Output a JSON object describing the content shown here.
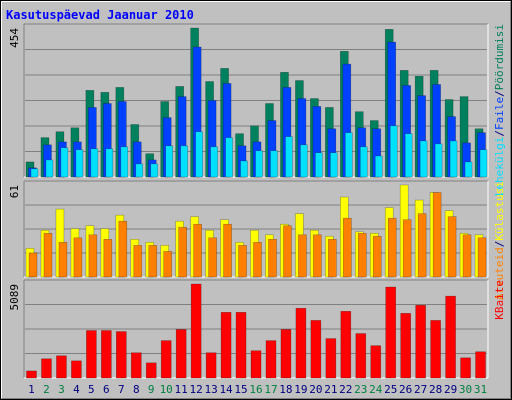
{
  "chart_data": [
    {
      "type": "bar",
      "title": "Kasutuspäevad Jaanuar 2010",
      "categories": [
        "1",
        "2",
        "3",
        "4",
        "5",
        "6",
        "7",
        "8",
        "9",
        "10",
        "11",
        "12",
        "13",
        "14",
        "15",
        "16",
        "17",
        "18",
        "19",
        "20",
        "21",
        "22",
        "23",
        "24",
        "25",
        "26",
        "27",
        "28",
        "29",
        "30",
        "31"
      ],
      "label_colors": [
        "#000080",
        "#008040",
        "#008040",
        "#000080",
        "#000080",
        "#000080",
        "#000080",
        "#000080",
        "#008040",
        "#008040",
        "#000080",
        "#000080",
        "#000080",
        "#000080",
        "#000080",
        "#008040",
        "#008040",
        "#000080",
        "#000080",
        "#000080",
        "#000080",
        "#000080",
        "#008040",
        "#008040",
        "#000080",
        "#000080",
        "#000080",
        "#000080",
        "#000080",
        "#008040",
        "#008040"
      ],
      "legend_separator": "/",
      "ylim": [
        0,
        454
      ],
      "yticks": [
        454
      ],
      "series": [
        {
          "name": "Pöördumisi",
          "color": "#00805c",
          "values": [
            46,
            120,
            138,
            150,
            264,
            258,
            273,
            160,
            71,
            230,
            276,
            454,
            291,
            331,
            132,
            156,
            224,
            319,
            294,
            239,
            212,
            383,
            199,
            172,
            450,
            325,
            307,
            325,
            236,
            245,
            147
          ]
        },
        {
          "name": "Faile",
          "color": "#0040ff",
          "values": [
            28,
            98,
            107,
            107,
            212,
            224,
            230,
            107,
            52,
            181,
            245,
            396,
            233,
            285,
            95,
            107,
            172,
            273,
            239,
            215,
            147,
            344,
            150,
            147,
            411,
            279,
            248,
            282,
            184,
            104,
            135
          ]
        },
        {
          "name": "Lehekülgi",
          "color": "#00e0ff",
          "values": [
            25,
            52,
            89,
            83,
            86,
            86,
            92,
            40,
            40,
            95,
            95,
            138,
            92,
            120,
            49,
            80,
            80,
            123,
            98,
            74,
            74,
            135,
            92,
            64,
            156,
            132,
            110,
            101,
            110,
            46,
            83
          ]
        }
      ]
    },
    {
      "type": "bar",
      "ylim": [
        0,
        61
      ],
      "yticks": [
        61
      ],
      "series": [
        {
          "name": "Külastusi",
          "color": "#ffff00",
          "values": [
            19,
            31,
            45,
            32,
            34,
            32,
            41,
            25,
            23,
            21,
            37,
            40,
            31,
            38,
            23,
            31,
            28,
            35,
            42,
            31,
            27,
            53,
            30,
            29,
            46,
            61,
            51,
            56,
            44,
            29,
            28
          ]
        },
        {
          "name": "Arvuteid",
          "color": "#ff8000",
          "values": [
            16,
            29,
            23,
            26,
            28,
            25,
            37,
            21,
            21,
            17,
            33,
            35,
            26,
            35,
            21,
            23,
            25,
            34,
            28,
            28,
            25,
            39,
            29,
            27,
            39,
            38,
            42,
            56,
            40,
            28,
            26
          ]
        }
      ]
    },
    {
      "type": "bar",
      "ylim": [
        0,
        5089
      ],
      "yticks": [
        5089
      ],
      "series": [
        {
          "name": "KBaite",
          "color": "#ff0000",
          "values": [
            383,
            1040,
            1204,
            930,
            2572,
            2572,
            2517,
            1368,
            821,
            2025,
            2627,
            5089,
            1368,
            3557,
            3557,
            1477,
            2025,
            2627,
            3776,
            3119,
            2134,
            3612,
            2408,
            1751,
            4925,
            3502,
            3940,
            3119,
            4433,
            1094,
            1422
          ]
        }
      ]
    }
  ]
}
